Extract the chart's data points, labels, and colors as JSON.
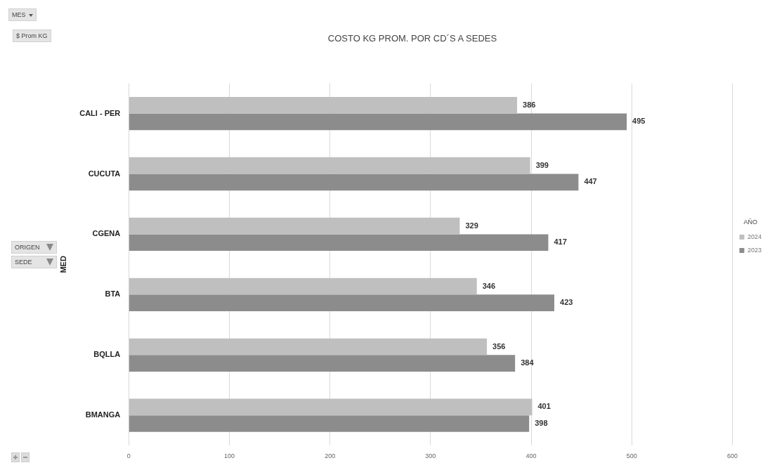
{
  "chart_data": {
    "type": "bar",
    "orientation": "horizontal",
    "title": "COSTO KG PROM. POR CD´S A SEDES",
    "ylabel": "MED",
    "legend_title": "AÑO",
    "categories": [
      "CALI - PER",
      "CUCUTA",
      "CGENA",
      "BTA",
      "BQLLA",
      "BMANGA"
    ],
    "series": [
      {
        "name": "2024",
        "color": "#bfbfbf",
        "values": [
          386,
          399,
          329,
          346,
          356,
          401
        ]
      },
      {
        "name": "2023",
        "color": "#8c8c8c",
        "values": [
          495,
          447,
          417,
          423,
          384,
          398
        ]
      }
    ],
    "xlim": [
      0,
      600
    ],
    "xticks": [
      0,
      100,
      200,
      300,
      400,
      500,
      600
    ],
    "grid": "x",
    "legend": "right",
    "data_labels": true,
    "annotations": [
      "MES",
      "$ Prom KG",
      "ORIGEN",
      "SEDE"
    ]
  }
}
